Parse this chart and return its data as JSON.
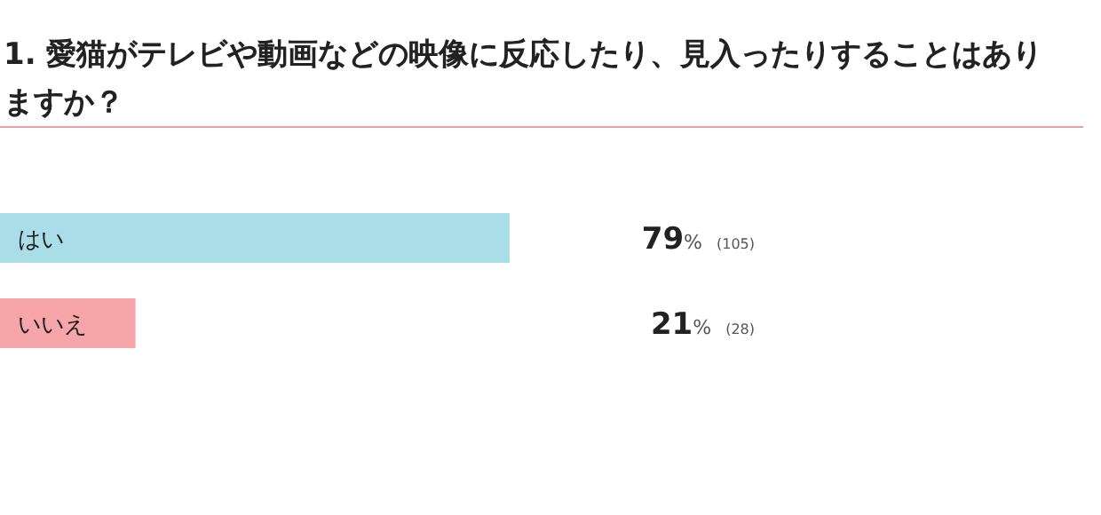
{
  "chart_data": {
    "type": "bar",
    "orientation": "horizontal",
    "relative": false,
    "title": "1. 愛猫がテレビや動画などの映像に反応したり、見入ったりすることはありますか？",
    "categories": [
      "はい",
      "いいえ"
    ],
    "values": [
      79,
      21
    ],
    "colors": [
      "#a9dde8",
      "#f6a5a9"
    ],
    "value_labels": [
      "79% (105)",
      "21% (28)"
    ],
    "tick_labels": false
  }
}
